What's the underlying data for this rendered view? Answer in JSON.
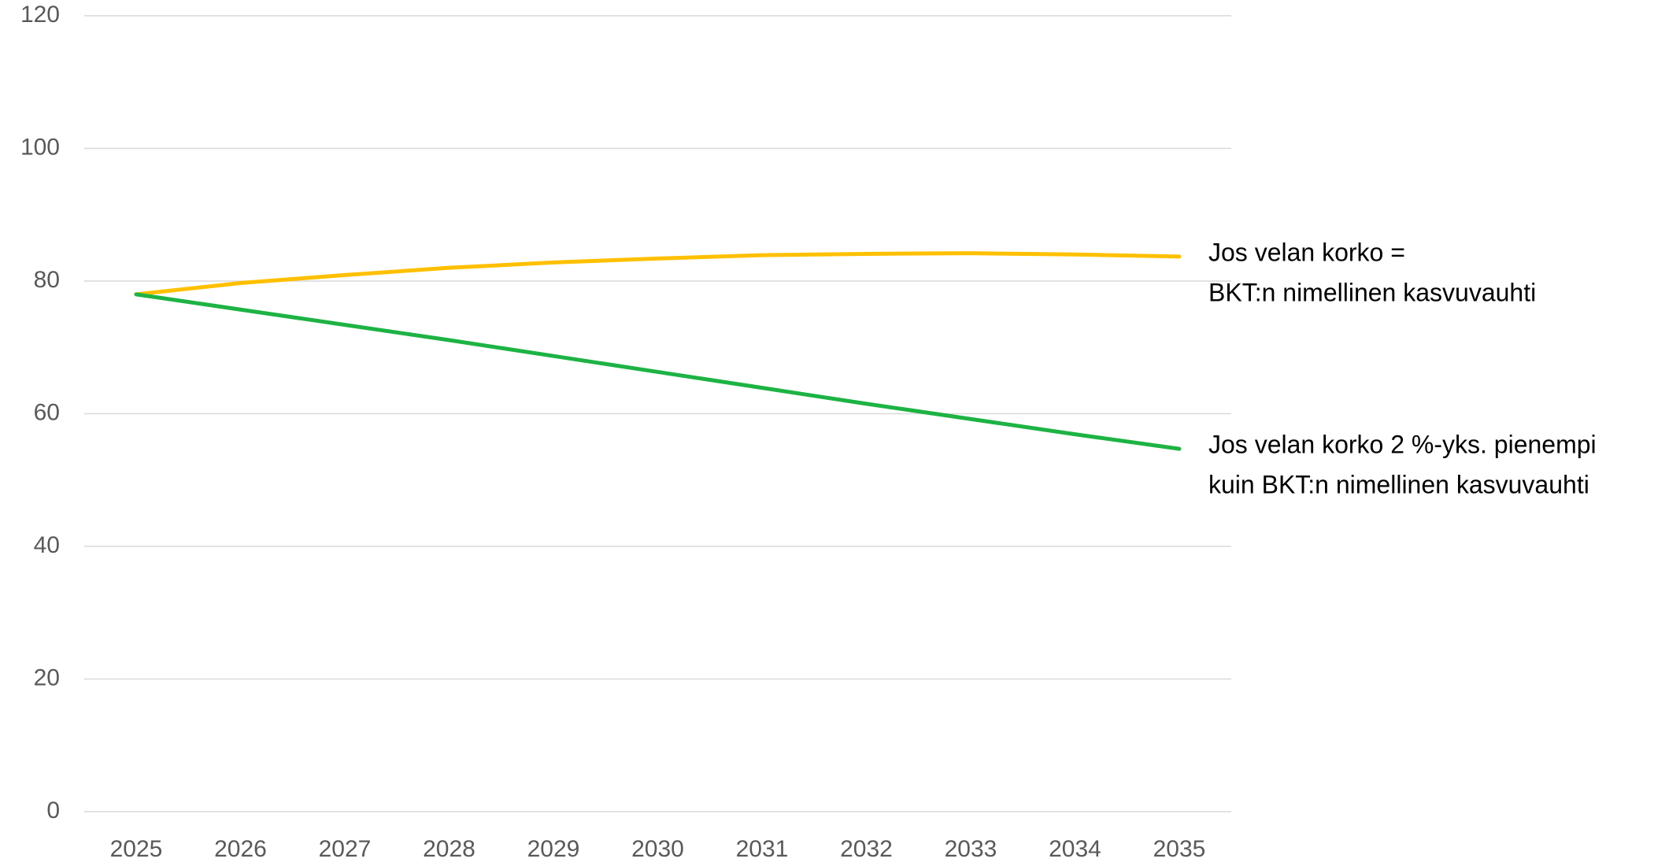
{
  "chart_data": {
    "type": "line",
    "categories": [
      "2025",
      "2026",
      "2027",
      "2028",
      "2029",
      "2030",
      "2031",
      "2032",
      "2033",
      "2034",
      "2035"
    ],
    "series": [
      {
        "label": [
          "Jos velan korko =",
          "BKT:n nimellinen kasvuvauhti"
        ],
        "color": "#ffc000",
        "values": [
          78,
          79.7,
          80.9,
          82,
          82.8,
          83.4,
          83.9,
          84.1,
          84.2,
          84.0,
          83.7
        ]
      },
      {
        "label": [
          "Jos velan korko 2 %-yks. pienempi",
          "kuin BKT:n nimellinen kasvuvauhti"
        ],
        "color": "#1db344",
        "values": [
          78,
          75.7,
          73.4,
          71.1,
          68.7,
          66.3,
          63.9,
          61.5,
          59.2,
          56.9,
          54.7
        ]
      }
    ],
    "ylim": [
      0,
      120
    ],
    "yticks": [
      0,
      20,
      40,
      60,
      80,
      100,
      120
    ],
    "grid": true
  }
}
